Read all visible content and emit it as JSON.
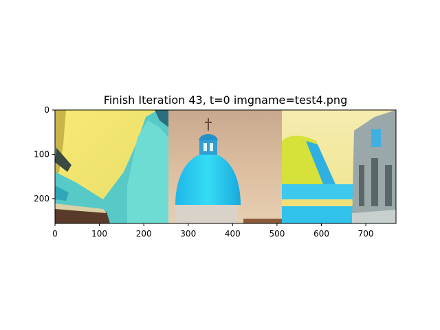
{
  "figure": {
    "title": "Finish Iteration 43, t=0 imgname=test4.png"
  },
  "chart_data": {
    "type": "image",
    "title": "Finish Iteration 43, t=0 imgname=test4.png",
    "xlim": [
      0,
      768
    ],
    "ylim": [
      256,
      0
    ],
    "x_ticks": [
      0,
      100,
      200,
      300,
      400,
      500,
      600,
      700
    ],
    "y_ticks": [
      0,
      100,
      200
    ],
    "panels": [
      {
        "x_start": 0,
        "x_end": 256,
        "content": "yellow sky with cyan blue abstract shapes"
      },
      {
        "x_start": 256,
        "x_end": 512,
        "content": "cyan dome with cross on tan cloudy sky"
      },
      {
        "x_start": 512,
        "x_end": 768,
        "content": "yellow-green foliage, cyan water, ornate building"
      }
    ]
  },
  "colors": {
    "p1_sky": "#f2e46a",
    "p2_sky": "#d9b796",
    "cyan": "#2fd6ee",
    "p3_sky": "#f0e68a"
  }
}
